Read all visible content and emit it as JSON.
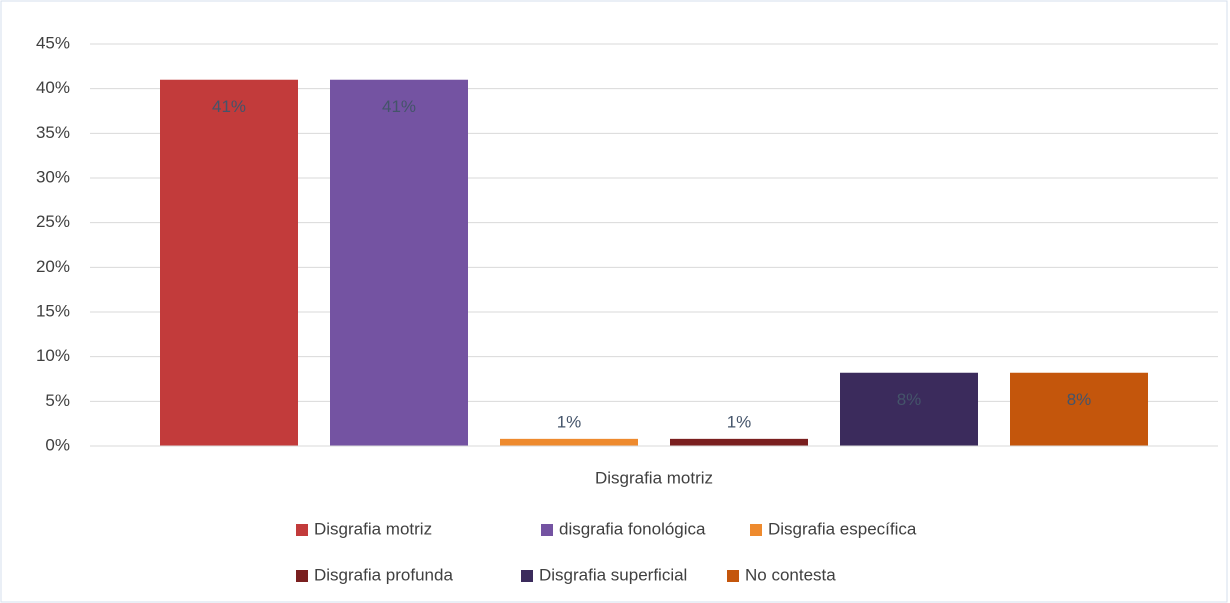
{
  "chart_data": {
    "type": "bar",
    "categories": [
      "Disgrafia motriz"
    ],
    "series": [
      {
        "name": "Disgrafia motriz",
        "color": "#c23b3b",
        "values": [
          41
        ],
        "value_labels": [
          "41%"
        ]
      },
      {
        "name": "disgrafia fonológica",
        "color": "#7453a2",
        "values": [
          41
        ],
        "value_labels": [
          "41%"
        ]
      },
      {
        "name": "Disgrafia específica",
        "color": "#ee8a2e",
        "values": [
          0.8
        ],
        "value_labels": [
          "1%"
        ]
      },
      {
        "name": "Disgrafia profunda",
        "color": "#7a1f1f",
        "values": [
          0.8
        ],
        "value_labels": [
          "1%"
        ]
      },
      {
        "name": "Disgrafia superficial",
        "color": "#3b2b5c",
        "values": [
          8.2
        ],
        "value_labels": [
          "8%"
        ]
      },
      {
        "name": "No contesta",
        "color": "#c4560c",
        "values": [
          8.2
        ],
        "value_labels": [
          "8%"
        ]
      }
    ],
    "ylim": [
      0,
      45
    ],
    "yticks": [
      {
        "value": 0,
        "label": "0%"
      },
      {
        "value": 5,
        "label": "5%"
      },
      {
        "value": 10,
        "label": "10%"
      },
      {
        "value": 15,
        "label": "15%"
      },
      {
        "value": 20,
        "label": "20%"
      },
      {
        "value": 25,
        "label": "25%"
      },
      {
        "value": 30,
        "label": "30%"
      },
      {
        "value": 35,
        "label": "35%"
      },
      {
        "value": 40,
        "label": "40%"
      },
      {
        "value": 45,
        "label": "45%"
      }
    ],
    "grid": true
  }
}
